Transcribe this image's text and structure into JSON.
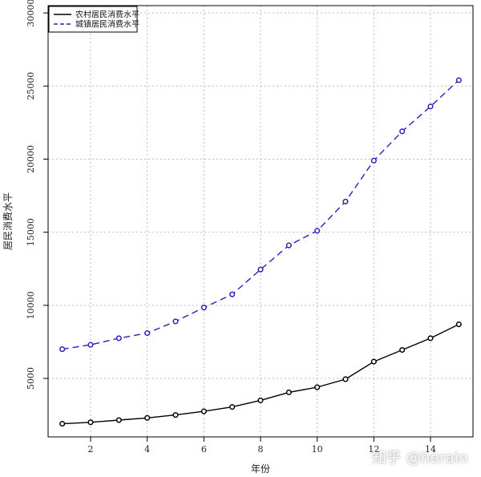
{
  "chart_data": {
    "type": "line",
    "title": "",
    "xlabel": "年份",
    "ylabel": "居民消费水平",
    "x": [
      1,
      2,
      3,
      4,
      5,
      6,
      7,
      8,
      9,
      10,
      11,
      12,
      13,
      14,
      15
    ],
    "xlim": [
      0.5,
      15.5
    ],
    "ylim": [
      1000,
      30500
    ],
    "xticks": [
      2,
      4,
      6,
      8,
      10,
      12,
      14
    ],
    "yticks": [
      5000,
      10000,
      15000,
      20000,
      25000,
      30000
    ],
    "grid": true,
    "legend_position": "top-left",
    "series": [
      {
        "name": "农村居民消费水平",
        "values": [
          1900,
          2000,
          2150,
          2300,
          2500,
          2750,
          3050,
          3500,
          4050,
          4400,
          4950,
          6150,
          6950,
          7750,
          8700
        ],
        "color": "#000000",
        "line_style": "solid"
      },
      {
        "name": "城镇居民消费水平",
        "values": [
          7000,
          7300,
          7750,
          8100,
          8900,
          9850,
          10750,
          12450,
          14100,
          15100,
          17100,
          19900,
          21900,
          23600,
          25400
        ],
        "color": "#2b1fb8",
        "line_style": "dashed"
      }
    ]
  },
  "watermark": "知乎 @herain"
}
